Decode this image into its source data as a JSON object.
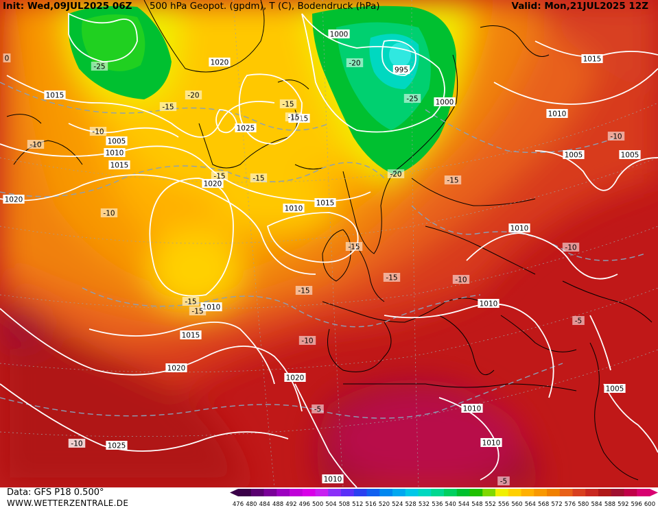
{
  "header": {
    "init": "Init: Wed,09JUL2025 06Z",
    "title": "500 hPa Geopot. (gpdm), T (C), Bodendruck (hPa)",
    "valid": "Valid: Mon,21JUL2025 12Z"
  },
  "footer": {
    "source": "Data: GFS P18 0.500°",
    "site": "WWW.WETTERZENTRALE.DE"
  },
  "legend": {
    "ticks": [
      "476",
      "480",
      "484",
      "488",
      "492",
      "496",
      "500",
      "504",
      "508",
      "512",
      "516",
      "520",
      "524",
      "528",
      "532",
      "536",
      "540",
      "544",
      "548",
      "552",
      "556",
      "560",
      "564",
      "568",
      "572",
      "576",
      "580",
      "584",
      "588",
      "592",
      "596",
      "600"
    ],
    "colors": [
      "#3a0048",
      "#5a0070",
      "#7a0098",
      "#9c00c0",
      "#c000d8",
      "#d800e8",
      "#c820f0",
      "#8a30f8",
      "#5a30f8",
      "#2a40f0",
      "#1060f0",
      "#0088f0",
      "#00a8f0",
      "#00c8e8",
      "#00d8c0",
      "#00d890",
      "#00d060",
      "#00c030",
      "#20c000",
      "#80d800",
      "#f0f000",
      "#ffd000",
      "#ffb000",
      "#f89800",
      "#f08000",
      "#e86018",
      "#d84020",
      "#c82820",
      "#b01818",
      "#a01030",
      "#c00048",
      "#d80070"
    ]
  },
  "map": {
    "pressure_labels": [
      {
        "text": "1000",
        "name": "isobar-label-1000-north"
      },
      {
        "text": "995",
        "name": "isobar-label-995"
      },
      {
        "text": "1000",
        "name": "isobar-label-1000-scand"
      },
      {
        "text": "1020",
        "name": "isobar-label-1020-green"
      },
      {
        "text": "1015",
        "name": "isobar-label-1015-west"
      },
      {
        "text": "1025",
        "name": "isobar-label-1025-greenland"
      },
      {
        "text": "1015",
        "name": "isobar-label-1015-iceland"
      },
      {
        "text": "1005",
        "name": "isobar-label-1005-canada"
      },
      {
        "text": "1010",
        "name": "isobar-label-1010-canada"
      },
      {
        "text": "1015",
        "name": "isobar-label-1015-canada"
      },
      {
        "text": "1020",
        "name": "isobar-label-1020-labrador"
      },
      {
        "text": "1020",
        "name": "isobar-label-1020-west-edge"
      },
      {
        "text": "1010",
        "name": "isobar-label-1010-atlantic"
      },
      {
        "text": "1015",
        "name": "isobar-label-1015-northsea"
      },
      {
        "text": "1010",
        "name": "isobar-label-1010-low"
      },
      {
        "text": "1015",
        "name": "isobar-label-1015-azores"
      },
      {
        "text": "1020",
        "name": "isobar-label-1020-azores"
      },
      {
        "text": "1020",
        "name": "isobar-label-1020-iberia"
      },
      {
        "text": "1025",
        "name": "isobar-label-1025-south"
      },
      {
        "text": "1010",
        "name": "isobar-label-1010-africa"
      },
      {
        "text": "1010",
        "name": "isobar-label-1010-libya"
      },
      {
        "text": "1010",
        "name": "isobar-label-1010-sahara"
      },
      {
        "text": "1010",
        "name": "isobar-label-1010-poland"
      },
      {
        "text": "1010",
        "name": "isobar-label-1010-balkans"
      },
      {
        "text": "1005",
        "name": "isobar-label-1005-russia"
      },
      {
        "text": "1005",
        "name": "isobar-label-1005-russia-east"
      },
      {
        "text": "1010",
        "name": "isobar-label-1010-russia"
      },
      {
        "text": "1015",
        "name": "isobar-label-1015-arctic-east"
      },
      {
        "text": "1005",
        "name": "isobar-label-1005-turkey"
      }
    ],
    "temperature_labels": [
      {
        "text": "-25",
        "name": "temp-label-minus25-west"
      },
      {
        "text": "-20",
        "name": "temp-label-minus20-greenland"
      },
      {
        "text": "-20",
        "name": "temp-label-minus20-norway"
      },
      {
        "text": "-25",
        "name": "temp-label-minus25-norway"
      },
      {
        "text": "-20",
        "name": "temp-label-minus20-scand"
      },
      {
        "text": "-15",
        "name": "temp-label-minus15-green"
      },
      {
        "text": "-15",
        "name": "temp-label-minus15-iceland"
      },
      {
        "text": "-15",
        "name": "temp-label-minus15-sea"
      },
      {
        "text": "-15",
        "name": "temp-label-minus15-a"
      },
      {
        "text": "-15",
        "name": "temp-label-minus15-b"
      },
      {
        "text": "-15",
        "name": "temp-label-minus15-c"
      },
      {
        "text": "-15",
        "name": "temp-label-minus15-baltic"
      },
      {
        "text": "-15",
        "name": "temp-label-minus15-uk"
      },
      {
        "text": "-15",
        "name": "temp-label-minus15-ne"
      },
      {
        "text": "-15",
        "name": "temp-label-minus15-bay"
      },
      {
        "text": "-15",
        "name": "temp-label-minus15-low"
      },
      {
        "text": "-10",
        "name": "temp-label-minus10-canada"
      },
      {
        "text": "-10",
        "name": "temp-label-minus10-west"
      },
      {
        "text": "-10",
        "name": "temp-label-minus10-atlantic"
      },
      {
        "text": "-10",
        "name": "temp-label-minus10-low"
      },
      {
        "text": "-10",
        "name": "temp-label-minus10-spain"
      },
      {
        "text": "-10",
        "name": "temp-label-minus10-germany"
      },
      {
        "text": "-10",
        "name": "temp-label-minus10-ukraine"
      },
      {
        "text": "-10",
        "name": "temp-label-minus10-russia"
      },
      {
        "text": "-10",
        "name": "temp-label-minus10-south"
      },
      {
        "text": "-5",
        "name": "temp-label-minus5-africa"
      },
      {
        "text": "-5",
        "name": "temp-label-minus5-turkey"
      },
      {
        "text": "-5",
        "name": "temp-label-minus5-se"
      },
      {
        "text": "0",
        "name": "temp-label-zero-west"
      }
    ]
  }
}
